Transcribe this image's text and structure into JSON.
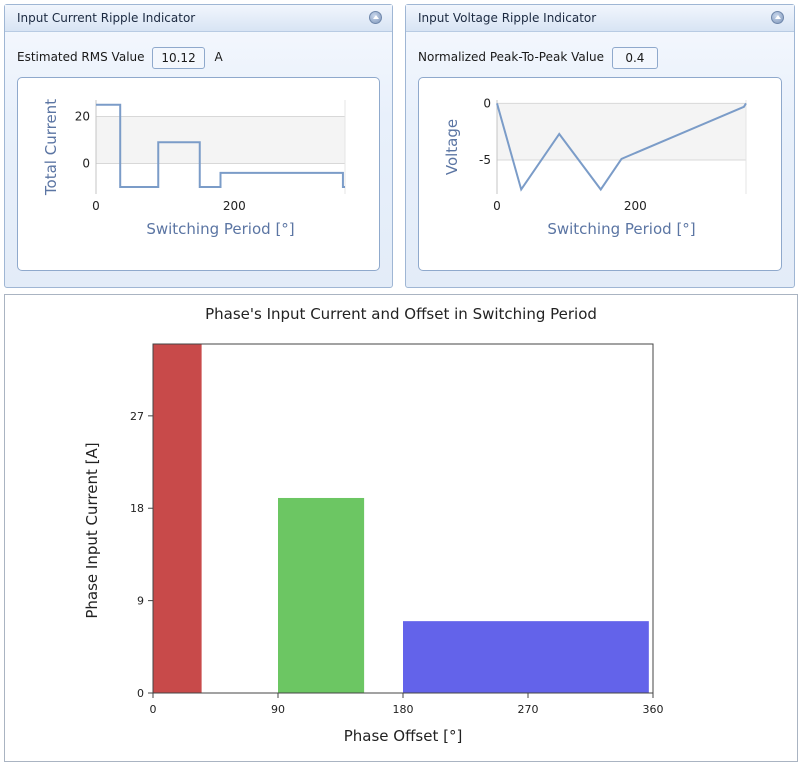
{
  "left_panel": {
    "title": "Input Current Ripple Indicator",
    "value_label": "Estimated RMS Value",
    "value": "10.12",
    "unit": "A"
  },
  "right_panel": {
    "title": "Input Voltage Ripple Indicator",
    "value_label": "Normalized Peak-To-Peak Value",
    "value": "0.4"
  },
  "colors": {
    "line": "#7b9cc8",
    "axis_text": "#5b75a3",
    "bar_1": "#c84a4a",
    "bar_2": "#6cc663",
    "bar_3": "#6363ea"
  },
  "chart_data": [
    {
      "type": "line",
      "xlabel": "Switching Period [°]",
      "ylabel": "Total Current",
      "xlim": [
        0,
        360
      ],
      "ylim": [
        -13,
        27
      ],
      "x_ticks": [
        0,
        200
      ],
      "y_ticks": [
        0,
        20
      ],
      "shaded_band": [
        0,
        20
      ],
      "x": [
        0,
        35,
        35,
        90,
        90,
        150,
        150,
        180,
        180,
        357,
        357,
        360
      ],
      "y": [
        25,
        25,
        -10,
        -10,
        9,
        9,
        -10,
        -10,
        -4,
        -4,
        -10,
        -10
      ]
    },
    {
      "type": "line",
      "xlabel": "Switching Period [°]",
      "ylabel": "Voltage",
      "xlim": [
        0,
        360
      ],
      "ylim": [
        -8,
        0.3
      ],
      "x_ticks": [
        0,
        200
      ],
      "y_ticks": [
        0,
        -5
      ],
      "shaded_band": [
        -5,
        0
      ],
      "x": [
        0,
        35,
        90,
        150,
        180,
        357,
        360
      ],
      "y": [
        0,
        -7.6,
        -2.7,
        -7.6,
        -4.9,
        -0.3,
        0
      ]
    },
    {
      "type": "bar",
      "title": "Phase's Input Current and Offset in Switching Period",
      "xlabel": "Phase Offset [°]",
      "ylabel": "Phase Input Current [A]",
      "xlim": [
        0,
        360
      ],
      "ylim": [
        0,
        34
      ],
      "x_ticks": [
        0,
        90,
        180,
        270,
        360
      ],
      "y_ticks": [
        0,
        9,
        18,
        27
      ],
      "bars": [
        {
          "x_start": 0,
          "x_end": 35,
          "value": 34
        },
        {
          "x_start": 90,
          "x_end": 152,
          "value": 19
        },
        {
          "x_start": 180,
          "x_end": 357,
          "value": 7
        }
      ]
    }
  ]
}
